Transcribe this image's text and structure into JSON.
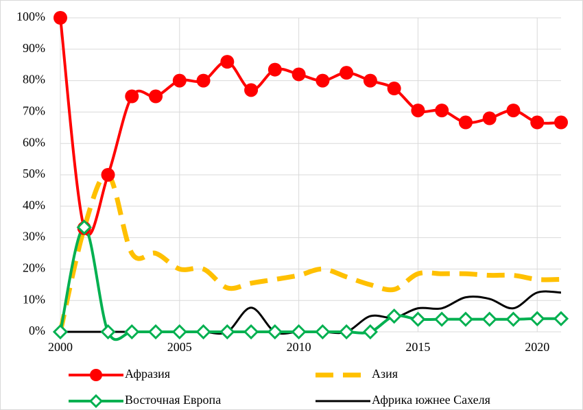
{
  "chart_data": {
    "type": "line",
    "x": [
      2000,
      2001,
      2002,
      2003,
      2004,
      2005,
      2006,
      2007,
      2008,
      2009,
      2010,
      2011,
      2012,
      2013,
      2014,
      2015,
      2016,
      2017,
      2018,
      2019,
      2020,
      2021
    ],
    "series": [
      {
        "name": "Афразия",
        "color": "#ff0000",
        "marker": "circle",
        "dash": false,
        "values": [
          100,
          33,
          50,
          75,
          75,
          80,
          80,
          86,
          77,
          83.5,
          82,
          80,
          82.5,
          80,
          77.5,
          70.5,
          70.5,
          66.7,
          68,
          70.5,
          66.7,
          66.7
        ]
      },
      {
        "name": "Азия",
        "color": "#ffc000",
        "marker": "none",
        "dash": true,
        "values": [
          0,
          33,
          50,
          25,
          25,
          20,
          20,
          14,
          15.5,
          16.7,
          18,
          20,
          17.5,
          15,
          13.5,
          18.5,
          18.5,
          18.5,
          18,
          18,
          16.7,
          16.7
        ]
      },
      {
        "name": "Восточная Европа",
        "color": "#00b050",
        "marker": "diamond",
        "dash": false,
        "values": [
          0,
          33.3,
          0,
          0,
          0,
          0,
          0,
          0,
          0,
          0,
          0,
          0,
          0,
          0,
          5,
          4,
          4,
          4,
          4,
          4,
          4.2,
          4.2
        ]
      },
      {
        "name": "Африка южнее Сахеля",
        "color": "#000000",
        "marker": "none",
        "dash": false,
        "values": [
          0,
          0,
          0,
          0,
          0,
          0,
          0,
          0,
          7.7,
          0,
          0,
          0,
          0,
          5,
          4.5,
          7.5,
          7.5,
          11,
          10.5,
          7.5,
          12.5,
          12.5
        ]
      }
    ],
    "xlim": [
      2000,
      2021
    ],
    "xticks": [
      2000,
      2005,
      2010,
      2015,
      2020
    ],
    "ylim": [
      0,
      100
    ],
    "yticks": [
      {
        "value": 0,
        "label": "0%"
      },
      {
        "value": 10,
        "label": "10%"
      },
      {
        "value": 20,
        "label": "20%"
      },
      {
        "value": 30,
        "label": "30%"
      },
      {
        "value": 40,
        "label": "40%"
      },
      {
        "value": 50,
        "label": "50%"
      },
      {
        "value": 60,
        "label": "60%"
      },
      {
        "value": 70,
        "label": "70%"
      },
      {
        "value": 80,
        "label": "80%"
      },
      {
        "value": 90,
        "label": "90%"
      },
      {
        "value": 100,
        "label": "100%"
      }
    ],
    "grid": true,
    "legend": "bottom"
  }
}
